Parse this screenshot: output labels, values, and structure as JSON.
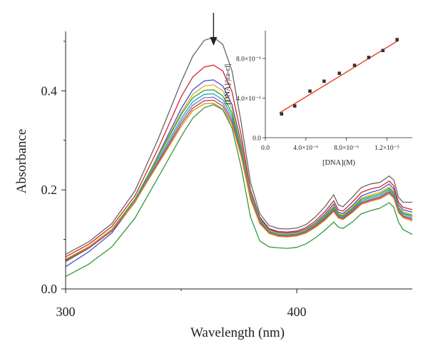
{
  "chart_data": [
    {
      "type": "line",
      "title": "",
      "xlabel": "Wavelength (nm)",
      "ylabel": "Absorbance",
      "xlim": [
        300,
        450
      ],
      "ylim": [
        0.0,
        0.52
      ],
      "x_ticks": [
        300,
        400
      ],
      "x_tick_labels": [
        "300",
        "400"
      ],
      "y_ticks": [
        0.0,
        0.2,
        0.4
      ],
      "y_tick_labels": [
        "0.0",
        "0.2",
        "0.4"
      ],
      "annotation": "downward arrow at absorption maximum (~364 nm) indicating decreasing absorbance",
      "arrow_x": 364,
      "x": [
        300,
        310,
        320,
        330,
        340,
        350,
        355,
        360,
        364,
        368,
        372,
        376,
        380,
        384,
        388,
        392,
        396,
        400,
        404,
        408,
        412,
        416,
        418,
        420,
        424,
        428,
        432,
        436,
        440,
        442,
        444,
        446,
        450
      ],
      "series": [
        {
          "color": "#666666",
          "values": [
            0.07,
            0.095,
            0.132,
            0.198,
            0.302,
            0.418,
            0.47,
            0.502,
            0.508,
            0.494,
            0.44,
            0.335,
            0.215,
            0.152,
            0.128,
            0.122,
            0.121,
            0.123,
            0.13,
            0.145,
            0.165,
            0.19,
            0.17,
            0.166,
            0.185,
            0.205,
            0.212,
            0.215,
            0.228,
            0.22,
            0.185,
            0.175,
            0.175
          ]
        },
        {
          "color": "#d62728",
          "values": [
            0.065,
            0.09,
            0.126,
            0.188,
            0.283,
            0.388,
            0.428,
            0.448,
            0.452,
            0.44,
            0.398,
            0.31,
            0.2,
            0.145,
            0.122,
            0.116,
            0.115,
            0.117,
            0.124,
            0.137,
            0.155,
            0.178,
            0.16,
            0.157,
            0.175,
            0.195,
            0.202,
            0.206,
            0.218,
            0.208,
            0.175,
            0.165,
            0.16
          ]
        },
        {
          "color": "#3b4fd6",
          "values": [
            0.045,
            0.075,
            0.113,
            0.177,
            0.27,
            0.364,
            0.402,
            0.42,
            0.422,
            0.41,
            0.372,
            0.295,
            0.196,
            0.143,
            0.12,
            0.114,
            0.113,
            0.115,
            0.121,
            0.133,
            0.15,
            0.172,
            0.155,
            0.152,
            0.168,
            0.188,
            0.195,
            0.2,
            0.212,
            0.202,
            0.17,
            0.16,
            0.155
          ]
        },
        {
          "color": "#e0a81c",
          "values": [
            0.057,
            0.083,
            0.119,
            0.181,
            0.268,
            0.356,
            0.393,
            0.41,
            0.412,
            0.4,
            0.364,
            0.29,
            0.193,
            0.14,
            0.118,
            0.112,
            0.111,
            0.113,
            0.119,
            0.131,
            0.147,
            0.168,
            0.152,
            0.149,
            0.165,
            0.184,
            0.19,
            0.195,
            0.206,
            0.197,
            0.166,
            0.156,
            0.15
          ]
        },
        {
          "color": "#2ca02c",
          "values": [
            0.058,
            0.085,
            0.12,
            0.181,
            0.266,
            0.352,
            0.386,
            0.401,
            0.402,
            0.39,
            0.355,
            0.283,
            0.189,
            0.138,
            0.116,
            0.11,
            0.109,
            0.111,
            0.117,
            0.129,
            0.145,
            0.165,
            0.15,
            0.147,
            0.162,
            0.181,
            0.187,
            0.192,
            0.203,
            0.194,
            0.163,
            0.153,
            0.148
          ]
        },
        {
          "color": "#1fa8b8",
          "values": [
            0.056,
            0.083,
            0.118,
            0.178,
            0.261,
            0.344,
            0.378,
            0.393,
            0.394,
            0.382,
            0.348,
            0.278,
            0.186,
            0.136,
            0.115,
            0.109,
            0.108,
            0.11,
            0.116,
            0.127,
            0.143,
            0.162,
            0.148,
            0.145,
            0.16,
            0.178,
            0.184,
            0.189,
            0.2,
            0.191,
            0.161,
            0.151,
            0.145
          ]
        },
        {
          "color": "#9467bd",
          "values": [
            0.055,
            0.082,
            0.117,
            0.176,
            0.257,
            0.338,
            0.371,
            0.386,
            0.387,
            0.375,
            0.342,
            0.274,
            0.184,
            0.135,
            0.114,
            0.108,
            0.107,
            0.109,
            0.115,
            0.126,
            0.141,
            0.16,
            0.146,
            0.143,
            0.158,
            0.175,
            0.181,
            0.186,
            0.197,
            0.188,
            0.158,
            0.148,
            0.142
          ]
        },
        {
          "color": "#8c564b",
          "values": [
            0.056,
            0.083,
            0.117,
            0.175,
            0.254,
            0.333,
            0.365,
            0.38,
            0.381,
            0.369,
            0.337,
            0.27,
            0.182,
            0.134,
            0.113,
            0.107,
            0.106,
            0.108,
            0.114,
            0.125,
            0.14,
            0.158,
            0.145,
            0.142,
            0.156,
            0.173,
            0.179,
            0.184,
            0.195,
            0.186,
            0.156,
            0.146,
            0.14
          ]
        },
        {
          "color": "#ff7f0e",
          "values": [
            0.06,
            0.085,
            0.119,
            0.176,
            0.252,
            0.328,
            0.36,
            0.374,
            0.375,
            0.363,
            0.332,
            0.267,
            0.18,
            0.132,
            0.112,
            0.106,
            0.105,
            0.107,
            0.113,
            0.124,
            0.138,
            0.156,
            0.143,
            0.14,
            0.154,
            0.171,
            0.177,
            0.182,
            0.192,
            0.183,
            0.154,
            0.144,
            0.137
          ]
        },
        {
          "color": "#2f9a3a",
          "values": [
            0.025,
            0.05,
            0.085,
            0.143,
            0.225,
            0.308,
            0.345,
            0.366,
            0.372,
            0.362,
            0.325,
            0.245,
            0.145,
            0.097,
            0.085,
            0.083,
            0.082,
            0.084,
            0.091,
            0.103,
            0.118,
            0.135,
            0.125,
            0.122,
            0.135,
            0.152,
            0.158,
            0.163,
            0.174,
            0.165,
            0.135,
            0.12,
            0.11
          ]
        }
      ]
    },
    {
      "type": "scatter",
      "title": "",
      "xlabel": "[DNA](M)",
      "ylabel": "[DNA]/|εa-εf|",
      "xlim": [
        0,
        1.45e-05
      ],
      "ylim": [
        0,
        1.08e-05
      ],
      "x_ticks": [
        0,
        4e-06,
        8e-06,
        1.2e-05
      ],
      "x_tick_labels": [
        "0.0",
        "4.0×10⁻⁶",
        "8.0×10⁻⁶",
        "1.2×10⁻⁵"
      ],
      "y_ticks": [
        0,
        4e-06,
        8e-06
      ],
      "y_tick_labels": [
        "0.0",
        "4.0×10⁻⁶",
        "8.0×10⁻⁶"
      ],
      "points": {
        "x": [
          1.6e-06,
          2.9e-06,
          4.4e-06,
          5.8e-06,
          7.3e-06,
          8.8e-06,
          1.02e-05,
          1.16e-05,
          1.3e-05
        ],
        "y": [
          2.4e-06,
          3.2e-06,
          4.7e-06,
          5.7e-06,
          6.5e-06,
          7.3e-06,
          8.1e-06,
          8.8e-06,
          9.9e-06
        ]
      },
      "fit_line": {
        "color": "#e8401c",
        "x": [
          1.4e-06,
          1.31e-05
        ],
        "y": [
          2.5e-06,
          9.8e-06
        ]
      }
    }
  ]
}
